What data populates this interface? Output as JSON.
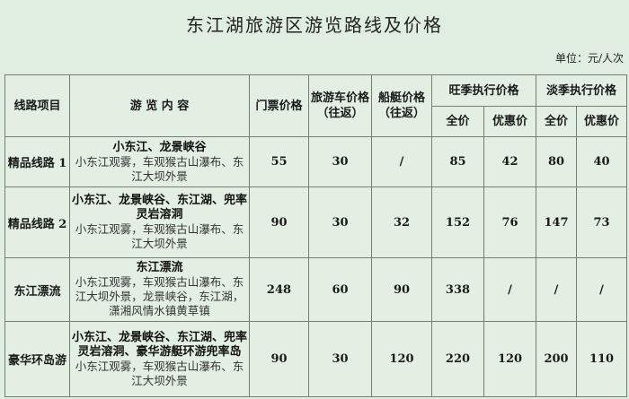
{
  "title": "东江湖旅游区游览路线及价格",
  "unit": "单位：元/人次",
  "headers": {
    "route": "线路项目",
    "content": "游 览 内 容",
    "ticket": "门票价格",
    "bus": "旅游车价格（往返）",
    "boat": "船艇价格（往返）",
    "peak": "旺季执行价格",
    "off": "淡季执行价格",
    "full": "全价",
    "discount": "优惠价"
  },
  "rows": [
    {
      "route": "精品线路 1",
      "main": "小东江、龙景峡谷",
      "sub": "小东江观雾，车观猴古山瀑布、东江大坝外景",
      "ticket": "55",
      "bus": "30",
      "boat": "/",
      "peak_full": "85",
      "peak_disc": "42",
      "off_full": "80",
      "off_disc": "40"
    },
    {
      "route": "精品线路 2",
      "main": "小东江、龙景峡谷、东江湖、兜率灵岩溶洞",
      "sub": "小东江观雾，车观猴古山瀑布、东江大坝外景",
      "ticket": "90",
      "bus": "30",
      "boat": "32",
      "peak_full": "152",
      "peak_disc": "76",
      "off_full": "147",
      "off_disc": "73"
    },
    {
      "route": "东江漂流",
      "main": "东江漂流",
      "sub": "小东江观雾，车观猴古山瀑布、东江大坝外景，龙景峡谷，东江湖，潇湘风情水镇黄草镇",
      "ticket": "248",
      "bus": "60",
      "boat": "90",
      "peak_full": "338",
      "peak_disc": "/",
      "off_full": "/",
      "off_disc": "/"
    },
    {
      "route": "豪华环岛游",
      "main": "小东江、龙景峡谷、东江湖、兜率灵岩溶洞、豪华游艇环游兜率岛",
      "sub": "小东江观雾，车观猴古山瀑布、东江大坝外景",
      "ticket": "90",
      "bus": "30",
      "boat": "120",
      "peak_full": "220",
      "peak_disc": "120",
      "off_full": "200",
      "off_disc": "110"
    }
  ]
}
